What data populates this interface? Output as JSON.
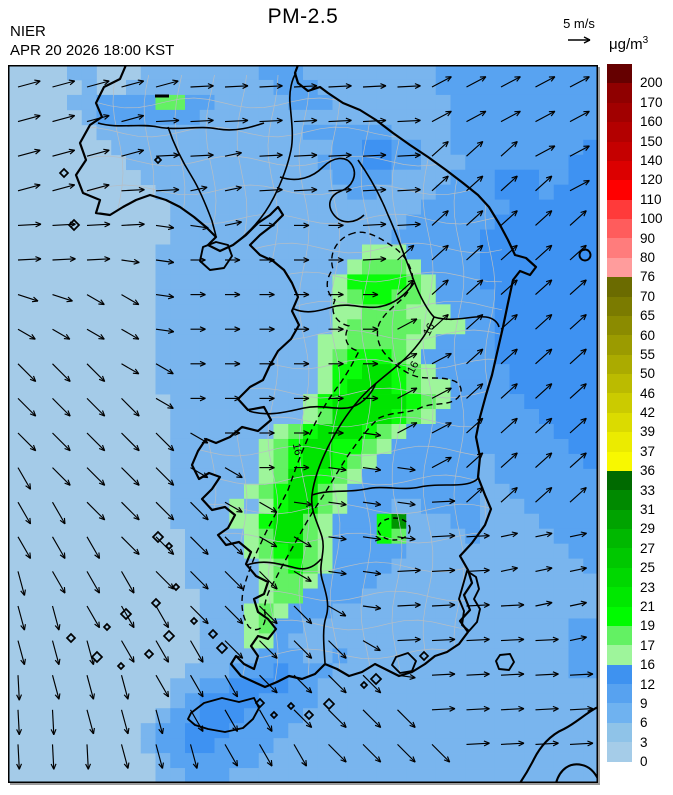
{
  "header": {
    "agency": "NIER",
    "datetime": "APR 20 2026 18:00 KST",
    "title": "PM-2.5",
    "wind_ref_label": "5 m/s",
    "unit_base": "μg/m",
    "unit_exp": "3"
  },
  "chart_data": {
    "type": "heatmap",
    "title": "PM-2.5",
    "unit": "μg/m³",
    "legend_position": "right",
    "colorbar_values": [
      200,
      170,
      160,
      150,
      140,
      120,
      110,
      100,
      90,
      80,
      76,
      70,
      65,
      60,
      55,
      50,
      46,
      42,
      39,
      37,
      36,
      33,
      31,
      29,
      27,
      25,
      23,
      21,
      19,
      17,
      16,
      12,
      9,
      6,
      3,
      0
    ],
    "colorbar_colors": [
      "#650000",
      "#8F0000",
      "#A10000",
      "#B30000",
      "#C50000",
      "#DC0000",
      "#FF0000",
      "#FF3A3A",
      "#FF5C5C",
      "#FF7C7C",
      "#FF9C9C",
      "#6B6B00",
      "#7B7B00",
      "#8B8B00",
      "#9B9B00",
      "#ABAB00",
      "#BBBB00",
      "#CBCB00",
      "#DBDB00",
      "#EBEB00",
      "#F8F800",
      "#006A00",
      "#008A00",
      "#00A300",
      "#00B800",
      "#00C800",
      "#00D800",
      "#00E800",
      "#00FB00",
      "#63F163",
      "#9EF59B",
      "#3E92F0",
      "#57A2F0",
      "#6FB2F0",
      "#8FC3E8",
      "#A5CCE8"
    ],
    "contour_label": "16",
    "field_palette": {
      "1": "#A4CBE8",
      "2": "#79B5EE",
      "3": "#58A3F1",
      "4": "#3E92F2",
      "5": "#9EF59B",
      "6": "#63F163",
      "7": "#0AFD0A",
      "8": "#00E400",
      "9": "#00D400",
      "d": "#009500"
    },
    "field_grid": [
      "1111221112222222233322222222233333333333",
      "1111121122222222223332222222233333333333",
      "1111223333663322222333222222223333333333",
      "1111123333333222222222222222223333333333",
      "1111112222222222222233333322223333333333",
      "1111111222222222222222334433223333333334",
      "1111111122222222222223334433222333333344",
      "1111111112222222222222333322223334443344",
      "1111111111222222222222233222233334443444",
      "1111111111122222222222222222333333444444",
      "1111111111122222222222222223333334444444",
      "1111111111122222222222222233333344444444",
      "1111111111222222222222225553333344444444",
      "1111111111222222222222256665333344444444",
      "1111111111222222222222577776533344444444",
      "1111111111222222222222567766533334444444",
      "1111111111222222222222556665553334444444",
      "1111111111222222222222566666555334444444",
      "1111111111222222222225566665533334444444",
      "1111111111222222222225677765333334444444",
      "1111111111222222222225778876533333444444",
      "1111111111222222222225788876553333444444",
      "1111111111122222222257888887653333344444",
      "1111111111122222222256888876533333334444",
      "1111111111122222225678887653333333333444",
      "1111111111122222256788776533333333333344",
      "1111111111122222256788765333333323333334",
      "1111111111122222256887653333333323333333",
      "1111111111122222567886533333333322333333",
      "1111111111122225257886533322333322233333",
      "111111111112222557886533 37d2223322223333",
      "1111111111112222568865333762222322222333",
      "1111111111112222567865333332222222222233",
      "1111111111112222256765333322222222222223",
      "1111111111112222256653333222222222222222",
      "1111111111111222256633332222222222222222",
      "1111111111111222565333222222222222222222",
      "1111111111111222563322222222222222222233",
      "1111111111111222553222222222222222222233",
      "1111111111111222233322322222222222222233",
      "1111111111112223334333222222222222222233",
      "1111111111122334444332222222222222222222",
      "1111111111123444433332222222222222222222",
      "1111111111233444333322222222222222222222",
      "1111111112334443333222222222222222222222",
      "1111111112334433332222222222222222222222",
      "1111111111233333322222222222222222222222",
      "1111111111223332222222222222222222222222"
    ],
    "wind_ref": "5 m/s",
    "wind_codes": {
      "a": [
        15,
        23
      ],
      "b": [
        3,
        23
      ],
      "c": [
        0,
        15
      ],
      "d": [
        -18,
        21
      ],
      "e": [
        -45,
        25
      ],
      "f": [
        -60,
        25
      ],
      "g": [
        -75,
        25
      ],
      "h": [
        -87,
        25
      ],
      "i": [
        42,
        22
      ],
      "j": [
        28,
        22
      ],
      "l": [
        -30,
        20
      ],
      "n": [
        -8,
        18
      ],
      "o": [
        12,
        17
      ]
    },
    "wind_grid": [
      "aaaaabbbbbbbjjjjj",
      "aaaabbbbbbbbjjjjj",
      "aaaabbobbbbbiiijj",
      "aaabboobbbbbiiiij",
      "bbbbnnocccbbiiiii",
      "bbbnncccccbiiiiii",
      "ddllncccccciiiiii",
      "llllnccccccjiiiii",
      "eeellccccccjjiiii",
      "eeeelccccccjjiiii",
      "eeeeelccccnjjiiii",
      "feeeellccnnnjiiii",
      "ffeeeellnnnnbiiii",
      "fffeeeellnnnbbooo",
      "gfffeeeelnnbbbooo",
      "ggfffeeeelnbbbboo",
      "gggfffeeeelbbbbbo",
      "hgggfffeeeenbbbbb",
      "hhgggfffeeeebbbbb",
      "hhhgggfffeeeebbbb"
    ]
  }
}
